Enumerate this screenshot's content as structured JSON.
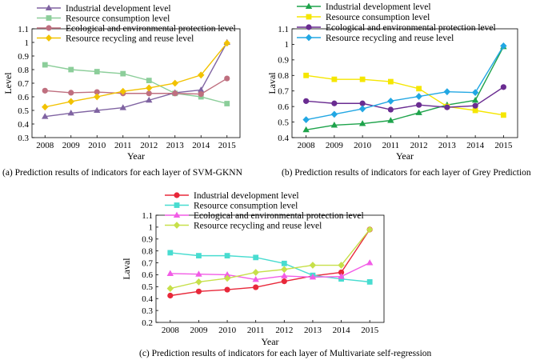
{
  "chart_data": [
    {
      "type": "line",
      "caption": "(a) Prediction results of indicators for each layer of SVM-GKNN",
      "xlabel": "Year",
      "ylabel": "Level",
      "x": [
        "2008",
        "2009",
        "2010",
        "2011",
        "2012",
        "2013",
        "2014",
        "2015"
      ],
      "yticks": [
        "0.3",
        "0.4",
        "0.5",
        "0.6",
        "0.7",
        "0.8",
        "0.9",
        "1",
        "1.1"
      ],
      "ylim": [
        0.3,
        1.1
      ],
      "legend_position": "top-left",
      "series": [
        {
          "name": "Industrial development level",
          "color": "#8064a2",
          "marker": "triangle",
          "values": [
            0.455,
            0.48,
            0.5,
            0.52,
            0.575,
            0.63,
            0.65,
            1.0
          ]
        },
        {
          "name": "Resource consumption level",
          "color": "#8cce9a",
          "marker": "square",
          "values": [
            0.835,
            0.8,
            0.785,
            0.77,
            0.72,
            0.625,
            0.6,
            0.55
          ]
        },
        {
          "name": "Ecological and environmental protection level",
          "color": "#bf6f7f",
          "marker": "circle",
          "values": [
            0.645,
            0.63,
            0.635,
            0.625,
            0.625,
            0.625,
            0.62,
            0.735
          ]
        },
        {
          "name": "Resource recycling and reuse level",
          "color": "#f2c200",
          "marker": "diamond",
          "values": [
            0.525,
            0.565,
            0.6,
            0.64,
            0.665,
            0.7,
            0.76,
            0.995
          ]
        }
      ]
    },
    {
      "type": "line",
      "caption": "(b) Prediction results of indicators for each layer of Grey Prediction",
      "xlabel": "Year",
      "ylabel": "Laval",
      "x": [
        "2008",
        "2009",
        "2010",
        "2011",
        "2012",
        "2013",
        "2014",
        "2015"
      ],
      "yticks": [
        "0.4",
        "0.5",
        "0.6",
        "0.7",
        "0.8",
        "0.9",
        "1",
        "1.1"
      ],
      "ylim": [
        0.4,
        1.1
      ],
      "legend_position": "top-left",
      "series": [
        {
          "name": "Industrial development level",
          "color": "#1ea34b",
          "marker": "triangle",
          "values": [
            0.45,
            0.48,
            0.49,
            0.51,
            0.56,
            0.61,
            0.64,
            0.985
          ]
        },
        {
          "name": "Resource consumption level",
          "color": "#f5e600",
          "marker": "square",
          "values": [
            0.8,
            0.775,
            0.775,
            0.76,
            0.715,
            0.6,
            0.575,
            0.545
          ]
        },
        {
          "name": "Ecological and environmental protection level",
          "color": "#6a2c91",
          "marker": "circle",
          "values": [
            0.635,
            0.62,
            0.62,
            0.58,
            0.61,
            0.595,
            0.605,
            0.725
          ]
        },
        {
          "name": "Resource recycling and reuse level",
          "color": "#22a7e3",
          "marker": "diamond",
          "values": [
            0.515,
            0.55,
            0.585,
            0.635,
            0.665,
            0.695,
            0.69,
            0.99
          ]
        }
      ]
    },
    {
      "type": "line",
      "caption": "(c) Prediction results of indicators for each layer of Multivariate self-regression",
      "xlabel": "Year",
      "ylabel": "Laval",
      "x": [
        "2008",
        "2009",
        "2010",
        "2011",
        "2012",
        "2013",
        "2014",
        "2015"
      ],
      "yticks": [
        "0.2",
        "0.3",
        "0.4",
        "0.5",
        "0.6",
        "0.7",
        "0.8",
        "0.9",
        "1",
        "1.1"
      ],
      "ylim": [
        0.2,
        1.1
      ],
      "legend_position": "top-left",
      "series": [
        {
          "name": "Industrial development level",
          "color": "#e8283a",
          "marker": "circle",
          "values": [
            0.425,
            0.46,
            0.475,
            0.495,
            0.545,
            0.59,
            0.62,
            0.98
          ]
        },
        {
          "name": "Resource consumption level",
          "color": "#48dcd0",
          "marker": "square",
          "values": [
            0.785,
            0.76,
            0.76,
            0.745,
            0.695,
            0.595,
            0.565,
            0.54
          ]
        },
        {
          "name": "Ecological and environmental protection level",
          "color": "#f25ce6",
          "marker": "triangle",
          "values": [
            0.61,
            0.605,
            0.6,
            0.56,
            0.59,
            0.58,
            0.585,
            0.7
          ]
        },
        {
          "name": "Resource recycling and reuse level",
          "color": "#c7e04a",
          "marker": "diamond",
          "values": [
            0.485,
            0.54,
            0.57,
            0.62,
            0.645,
            0.68,
            0.68,
            0.98
          ]
        }
      ]
    }
  ]
}
